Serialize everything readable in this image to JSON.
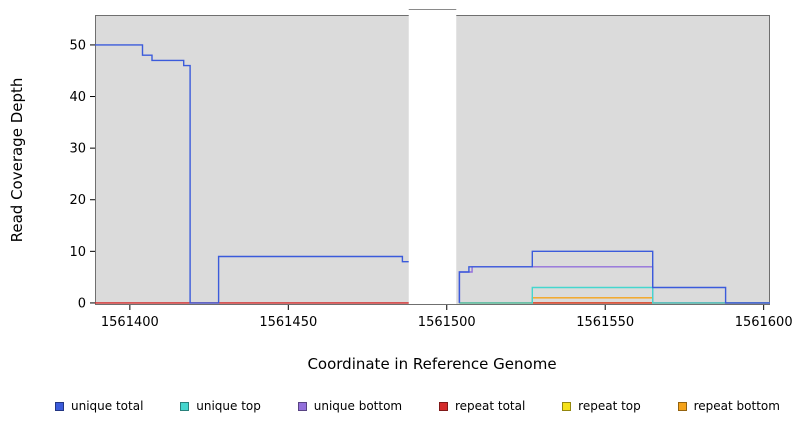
{
  "chart_data": {
    "type": "line",
    "title": "",
    "xlabel": "Coordinate in Reference Genome",
    "ylabel": "Read Coverage Depth",
    "xlim": [
      1561389,
      1561602
    ],
    "ylim": [
      -0.4,
      55.8
    ],
    "xticks": [
      1561400,
      1561450,
      1561500,
      1561550,
      1561600
    ],
    "yticks": [
      0,
      10,
      20,
      30,
      40,
      50
    ],
    "plot_bg": "#DBDBDB",
    "mask_region": [
      1561488,
      1561503
    ],
    "grid": false,
    "legend_position": "bottom",
    "series": [
      {
        "id": "unique-total",
        "name": "unique total",
        "color": "#3B5BDB",
        "segments": [
          [
            [
              1561389,
              50
            ],
            [
              1561404,
              50
            ],
            [
              1561404,
              48
            ],
            [
              1561407,
              48
            ],
            [
              1561407,
              47
            ],
            [
              1561417,
              47
            ],
            [
              1561417,
              46
            ],
            [
              1561419,
              46
            ],
            [
              1561419,
              0
            ],
            [
              1561428,
              0
            ],
            [
              1561428,
              9
            ],
            [
              1561486,
              9
            ],
            [
              1561486,
              8
            ],
            [
              1561489,
              8
            ],
            [
              1561489,
              0
            ]
          ],
          [
            [
              1561504,
              0
            ],
            [
              1561504,
              6
            ],
            [
              1561507,
              6
            ],
            [
              1561507,
              7
            ],
            [
              1561527,
              7
            ],
            [
              1561527,
              10
            ],
            [
              1561565,
              10
            ],
            [
              1561565,
              3
            ],
            [
              1561588,
              3
            ],
            [
              1561588,
              0
            ],
            [
              1561602,
              0
            ]
          ]
        ]
      },
      {
        "id": "unique-top",
        "name": "unique top",
        "color": "#45D6CE",
        "segments": [
          [
            [
              1561504,
              0
            ],
            [
              1561527,
              0
            ],
            [
              1561527,
              3
            ],
            [
              1561565,
              3
            ],
            [
              1561565,
              0
            ],
            [
              1561602,
              0
            ]
          ]
        ]
      },
      {
        "id": "unique-bottom",
        "name": "unique bottom",
        "color": "#9370DB",
        "segments": [
          [
            [
              1561504,
              0
            ],
            [
              1561504,
              6
            ],
            [
              1561508,
              6
            ],
            [
              1561508,
              7
            ],
            [
              1561565,
              7
            ],
            [
              1561565,
              0
            ],
            [
              1561602,
              0
            ]
          ]
        ]
      },
      {
        "id": "repeat-total",
        "name": "repeat total",
        "color": "#D42B2B",
        "segments": [
          [
            [
              1561389,
              0
            ],
            [
              1561489,
              0
            ]
          ],
          [
            [
              1561504,
              0
            ],
            [
              1561602,
              0
            ]
          ]
        ]
      },
      {
        "id": "repeat-top",
        "name": "repeat top",
        "color": "#F5E119",
        "segments": [
          [
            [
              1561504,
              0
            ],
            [
              1561602,
              0
            ]
          ]
        ]
      },
      {
        "id": "repeat-bottom",
        "name": "repeat bottom",
        "color": "#F5A31A",
        "segments": [
          [
            [
              1561504,
              0
            ],
            [
              1561527,
              0
            ],
            [
              1561527,
              1
            ],
            [
              1561565,
              1
            ],
            [
              1561565,
              0
            ],
            [
              1561602,
              0
            ]
          ]
        ]
      }
    ]
  }
}
